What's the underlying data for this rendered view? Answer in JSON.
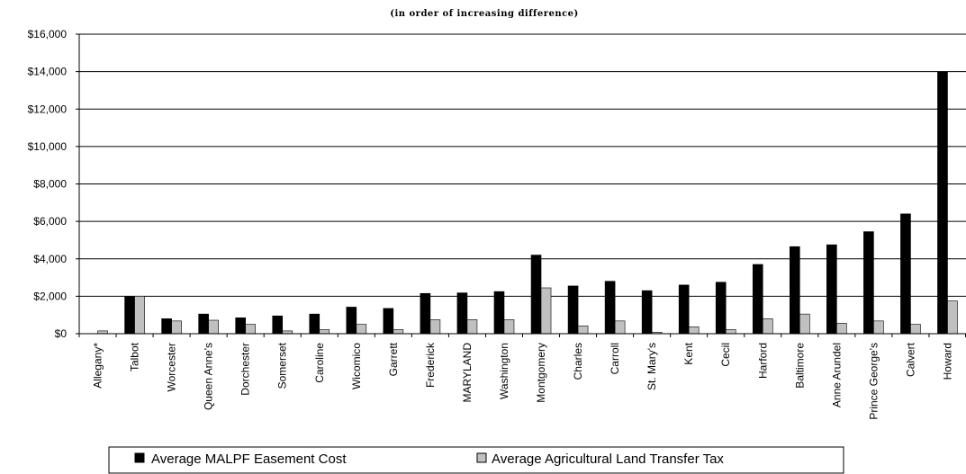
{
  "chart_data": {
    "type": "bar",
    "subtitle": "(in order of increasing difference)",
    "ylim": [
      0,
      16000
    ],
    "yticks": [
      0,
      2000,
      4000,
      6000,
      8000,
      10000,
      12000,
      14000,
      16000
    ],
    "ytick_labels": [
      "$0",
      "$2,000",
      "$4,000",
      "$6,000",
      "$8,000",
      "$10,000",
      "$12,000",
      "$14,000",
      "$16,000"
    ],
    "grid": true,
    "legend_position": "bottom",
    "categories": [
      "Allegany*",
      "Talbot",
      "Worcester",
      "Queen Anne's",
      "Dorchester",
      "Somerset",
      "Caroline",
      "Wicomico",
      "Garrett",
      "Frederick",
      "MARYLAND",
      "Washington",
      "Montgomery",
      "Charles",
      "Carroll",
      "St. Mary's",
      "Kent",
      "Cecil",
      "Harford",
      "Baltimore",
      "Anne Arundel",
      "Prince George's",
      "Calvert",
      "Howard"
    ],
    "series": [
      {
        "name": "Average MALPF Easement Cost",
        "color": "#000000",
        "values": [
          0,
          2000,
          800,
          1050,
          850,
          950,
          1050,
          1420,
          1350,
          2150,
          2180,
          2250,
          4200,
          2550,
          2800,
          2300,
          2600,
          2750,
          3700,
          4650,
          4750,
          5450,
          6400,
          14000
        ]
      },
      {
        "name": "Average Agricultural Land Transfer Tax",
        "color": "#c0c0c0",
        "values": [
          150,
          2000,
          680,
          720,
          500,
          150,
          220,
          500,
          220,
          750,
          750,
          750,
          2450,
          420,
          680,
          80,
          370,
          220,
          800,
          1050,
          560,
          680,
          500,
          1750
        ]
      }
    ]
  }
}
